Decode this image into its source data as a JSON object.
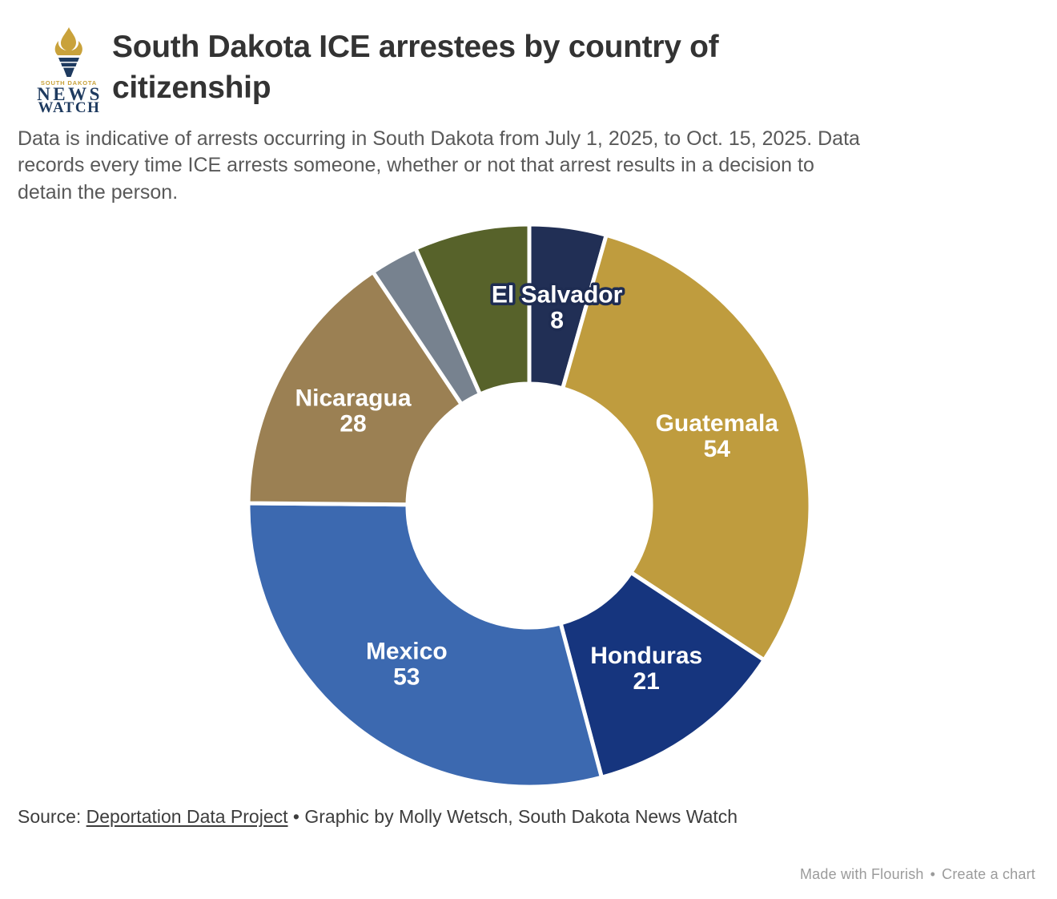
{
  "header": {
    "logo": {
      "line1": "SOUTH DAKOTA",
      "line2": "NEWS",
      "line3": "WATCH"
    },
    "title_line1": "South Dakota ICE arrestees by country of",
    "title_line2": "citizenship"
  },
  "subtitle": {
    "lines": [
      "Data is indicative of arrests occurring in South Dakota from July 1, 2025, to Oct. 15, 2025. Data",
      "records every time ICE arrests someone, whether or not that arrest results in a decision to",
      "detain the person."
    ],
    "full_text": "Data is indicative of arrests occurring in South Dakota from July 1, 2025, to Oct. 15, 2025. Data records every time ICE arrests someone, whether or not that arrest results in a decision to detain the person."
  },
  "footer": {
    "source_prefix": "Source: ",
    "source_link": "Deportation Data Project",
    "source_suffix": " • Graphic by Molly Wetsch, South Dakota News Watch"
  },
  "attribution": {
    "made_with": "Made with Flourish",
    "separator": "•",
    "create": "Create a chart"
  },
  "colors": {
    "title": "#333333",
    "subtitle": "#595959",
    "logo_navy": "#1e3a5f",
    "logo_gold": "#c9a23b",
    "label_text": "#ffffff",
    "label_halo": "#1e2c52",
    "segment_gap": "#ffffff"
  },
  "chart_data": {
    "type": "pie",
    "subtype": "donut",
    "title": "South Dakota ICE arrestees by country of citizenship",
    "start_angle_deg": 0,
    "clockwise": true,
    "legend": "none",
    "segments": [
      {
        "label": "El Salvador",
        "value": 8,
        "color": "#212f55",
        "label_halo": true,
        "estimated": false
      },
      {
        "label": "Guatemala",
        "value": 54,
        "color": "#bf9c3e",
        "label_halo": false,
        "estimated": false
      },
      {
        "label": "Honduras",
        "value": 21,
        "color": "#16357e",
        "label_halo": false,
        "estimated": false
      },
      {
        "label": "Mexico",
        "value": 53,
        "color": "#3c69b0",
        "label_halo": false,
        "estimated": false
      },
      {
        "label": "Nicaragua",
        "value": 28,
        "color": "#9b8053",
        "label_halo": false,
        "estimated": false
      },
      {
        "label": "",
        "value": 5,
        "color": "#77828f",
        "label_halo": false,
        "estimated": true
      },
      {
        "label": "",
        "value": 12,
        "color": "#57622a",
        "label_halo": false,
        "estimated": true
      }
    ]
  }
}
